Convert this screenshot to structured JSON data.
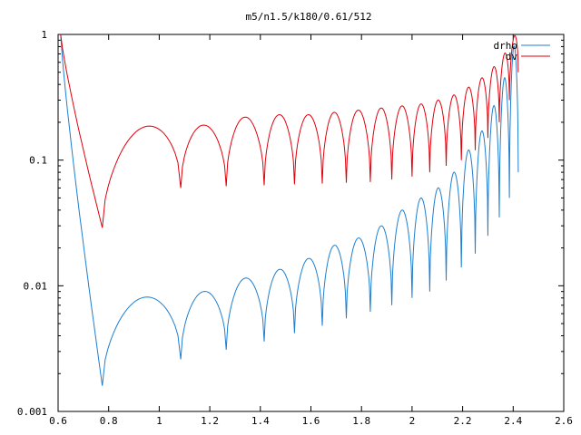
{
  "chart_data": {
    "type": "line",
    "title": "m5/n1.5/k180/0.61/512",
    "xlabel": "",
    "ylabel": "",
    "xlim": [
      0.6,
      2.6
    ],
    "ylim": [
      0.001,
      1
    ],
    "yscale": "log",
    "grid": false,
    "legend_position": "top-right",
    "x_ticks": [
      "0.6",
      "0.8",
      "1",
      "1.2",
      "1.4",
      "1.6",
      "1.8",
      "2",
      "2.2",
      "2.4",
      "2.6"
    ],
    "y_ticks": [
      "0.001",
      "0.01",
      "0.1",
      "1"
    ],
    "series": [
      {
        "name": "drho",
        "color": "#1f7fd0",
        "x_range": [
          0.61,
          2.43
        ],
        "min_x": [
          0.775,
          1.085,
          1.265,
          1.415,
          1.535,
          1.645,
          1.74,
          1.835,
          1.92,
          2.0,
          2.07,
          2.135,
          2.195,
          2.25,
          2.3,
          2.345,
          2.385,
          2.42
        ],
        "min_y": [
          0.0016,
          0.0026,
          0.0031,
          0.0036,
          0.0042,
          0.0048,
          0.0055,
          0.0062,
          0.007,
          0.008,
          0.009,
          0.011,
          0.014,
          0.018,
          0.025,
          0.035,
          0.05,
          0.08
        ],
        "max_y": [
          0.008,
          0.009,
          0.0115,
          0.0135,
          0.0165,
          0.021,
          0.024,
          0.03,
          0.04,
          0.05,
          0.06,
          0.08,
          0.12,
          0.17,
          0.27,
          0.45,
          0.8
        ]
      },
      {
        "name": "dv",
        "color": "#e0000c",
        "x_range": [
          0.61,
          2.43
        ],
        "min_x": [
          0.775,
          1.085,
          1.265,
          1.415,
          1.535,
          1.645,
          1.74,
          1.835,
          1.92,
          2.0,
          2.07,
          2.135,
          2.195,
          2.25,
          2.3,
          2.345,
          2.385,
          2.42
        ],
        "min_y": [
          0.029,
          0.06,
          0.062,
          0.063,
          0.064,
          0.065,
          0.066,
          0.067,
          0.07,
          0.074,
          0.08,
          0.09,
          0.1,
          0.12,
          0.15,
          0.2,
          0.3,
          0.5
        ],
        "max_y": [
          0.18,
          0.19,
          0.22,
          0.23,
          0.23,
          0.24,
          0.25,
          0.26,
          0.27,
          0.28,
          0.3,
          0.33,
          0.38,
          0.45,
          0.55,
          0.7,
          0.95
        ]
      }
    ]
  }
}
